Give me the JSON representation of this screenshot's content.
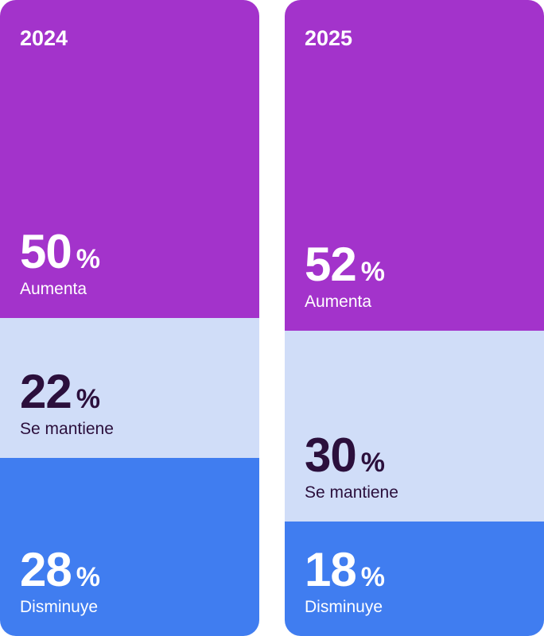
{
  "colors": {
    "aumenta": "#a333cb",
    "se_mantiene": "#d0ddf8",
    "disminuye": "#407df0",
    "dark_text": "#2b0f3c",
    "light_text": "#ffffff"
  },
  "percent_sign": "%",
  "chart_data": {
    "type": "bar",
    "stacked": true,
    "normalized_100": true,
    "categories": [
      "2024",
      "2025"
    ],
    "series": [
      {
        "name": "Aumenta",
        "values": [
          50,
          52
        ],
        "labels": [
          "50",
          "52"
        ]
      },
      {
        "name": "Se mantiene",
        "values": [
          22,
          30
        ],
        "labels": [
          "22",
          "30"
        ]
      },
      {
        "name": "Disminuye",
        "values": [
          28,
          18
        ],
        "labels": [
          "28",
          "18"
        ]
      }
    ],
    "unit": "%",
    "legend": "none (labels inside segments)"
  }
}
